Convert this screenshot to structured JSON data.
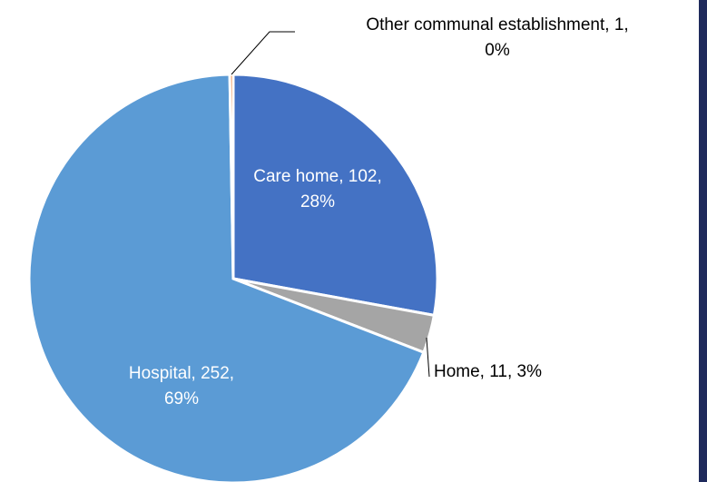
{
  "chart_data": {
    "type": "pie",
    "values": [
      102,
      11,
      252,
      1
    ],
    "value_labels": [
      [
        "Care home, 102,",
        "28%"
      ],
      [
        "Home, 11, 3%"
      ],
      [
        "Hospital, 252,",
        "69%"
      ],
      [
        "Other communal establishment, 1,",
        "0%"
      ]
    ],
    "colors": [
      "#4472c4",
      "#a5a5a5",
      "#5b9bd5",
      "#ed7d31"
    ]
  }
}
